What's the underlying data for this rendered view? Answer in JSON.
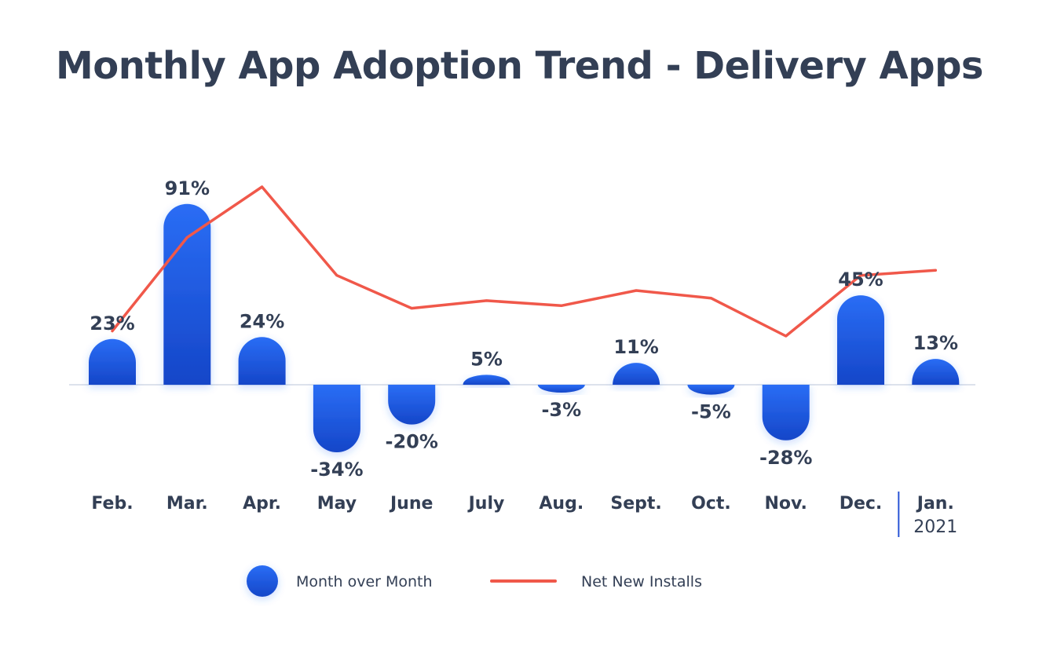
{
  "title": "Monthly App Adoption Trend - Delivery Apps",
  "colors": {
    "bar_top": "#2a6df5",
    "bar_bottom": "#1546c8",
    "line": "#f0584a",
    "baseline": "#dde2ec",
    "text": "#333f55",
    "marker": "#2b55d6"
  },
  "chart_data": {
    "type": "bar",
    "categories": [
      "Feb.",
      "Mar.",
      "Apr.",
      "May",
      "June",
      "July",
      "Aug.",
      "Sept.",
      "Oct.",
      "Nov.",
      "Dec.",
      "Jan."
    ],
    "year_marker": {
      "category": "Jan.",
      "label": "2021"
    },
    "series": [
      {
        "name": "Month over Month",
        "type": "bar",
        "values": [
          23,
          91,
          24,
          -34,
          -20,
          5,
          -3,
          11,
          -5,
          -28,
          45,
          13
        ],
        "labels": [
          "23%",
          "91%",
          "24%",
          "-34%",
          "-20%",
          "5%",
          "-3%",
          "11%",
          "-5%",
          "-28%",
          "45%",
          "13%"
        ]
      },
      {
        "name": "Net New Installs",
        "type": "line",
        "values": [
          43,
          80,
          100,
          65,
          52,
          55,
          53,
          59,
          56,
          41,
          65,
          67
        ]
      }
    ],
    "ylim_bars": [
      -40,
      95
    ],
    "ylim_line": [
      0,
      100
    ],
    "legend": {
      "position": "bottom-center",
      "entries": [
        "Month over Month",
        "Net New Installs"
      ]
    },
    "grid": false
  }
}
